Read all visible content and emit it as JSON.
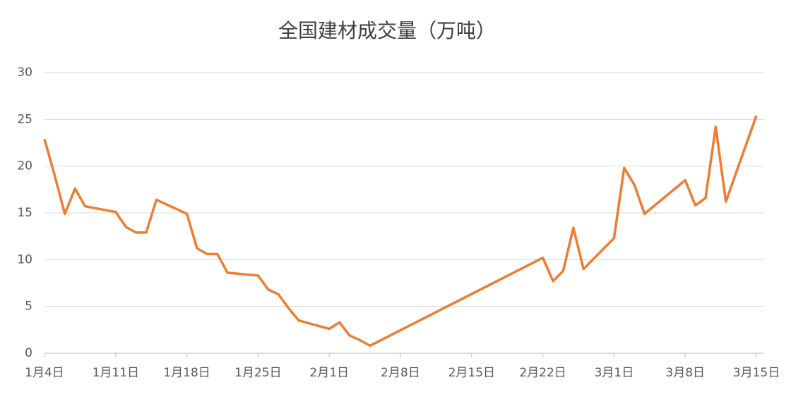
{
  "chart_data": {
    "type": "line",
    "title": "全国建材成交量（万吨）",
    "x": [
      "1月4日",
      "1月5日",
      "1月6日",
      "1月7日",
      "1月8日",
      "1月11日",
      "1月12日",
      "1月13日",
      "1月14日",
      "1月15日",
      "1月18日",
      "1月19日",
      "1月20日",
      "1月21日",
      "1月22日",
      "1月25日",
      "1月26日",
      "1月27日",
      "1月28日",
      "1月29日",
      "2月1日",
      "2月2日",
      "2月3日",
      "2月4日",
      "2月5日",
      "2月22日",
      "2月23日",
      "2月24日",
      "2月25日",
      "2月26日",
      "3月1日",
      "3月2日",
      "3月3日",
      "3月4日",
      "3月5日",
      "3月8日",
      "3月9日",
      "3月10日",
      "3月11日",
      "3月12日",
      "3月15日"
    ],
    "series": [
      {
        "name": "全国建材成交量",
        "color": "#ed7d31",
        "values": [
          22.9,
          19.0,
          14.9,
          17.6,
          15.7,
          15.1,
          13.5,
          12.9,
          12.9,
          16.4,
          14.9,
          11.2,
          10.6,
          10.6,
          8.6,
          8.3,
          6.8,
          6.3,
          4.8,
          3.5,
          2.6,
          3.3,
          1.9,
          1.4,
          0.8,
          10.2,
          7.7,
          8.8,
          13.4,
          9.0,
          12.3,
          19.8,
          18.0,
          14.9,
          15.8,
          18.5,
          15.8,
          16.6,
          24.2,
          16.2,
          25.4
        ]
      }
    ],
    "xlim": [
      "1月4日",
      "3月15日"
    ],
    "xticks": [
      "1月4日",
      "1月11日",
      "1月18日",
      "1月25日",
      "2月1日",
      "2月8日",
      "2月15日",
      "2月22日",
      "3月1日",
      "3月8日",
      "3月15日"
    ],
    "ylim": [
      0,
      30
    ],
    "yticks": [
      0,
      5,
      10,
      15,
      20,
      25,
      30
    ],
    "grid": true
  }
}
